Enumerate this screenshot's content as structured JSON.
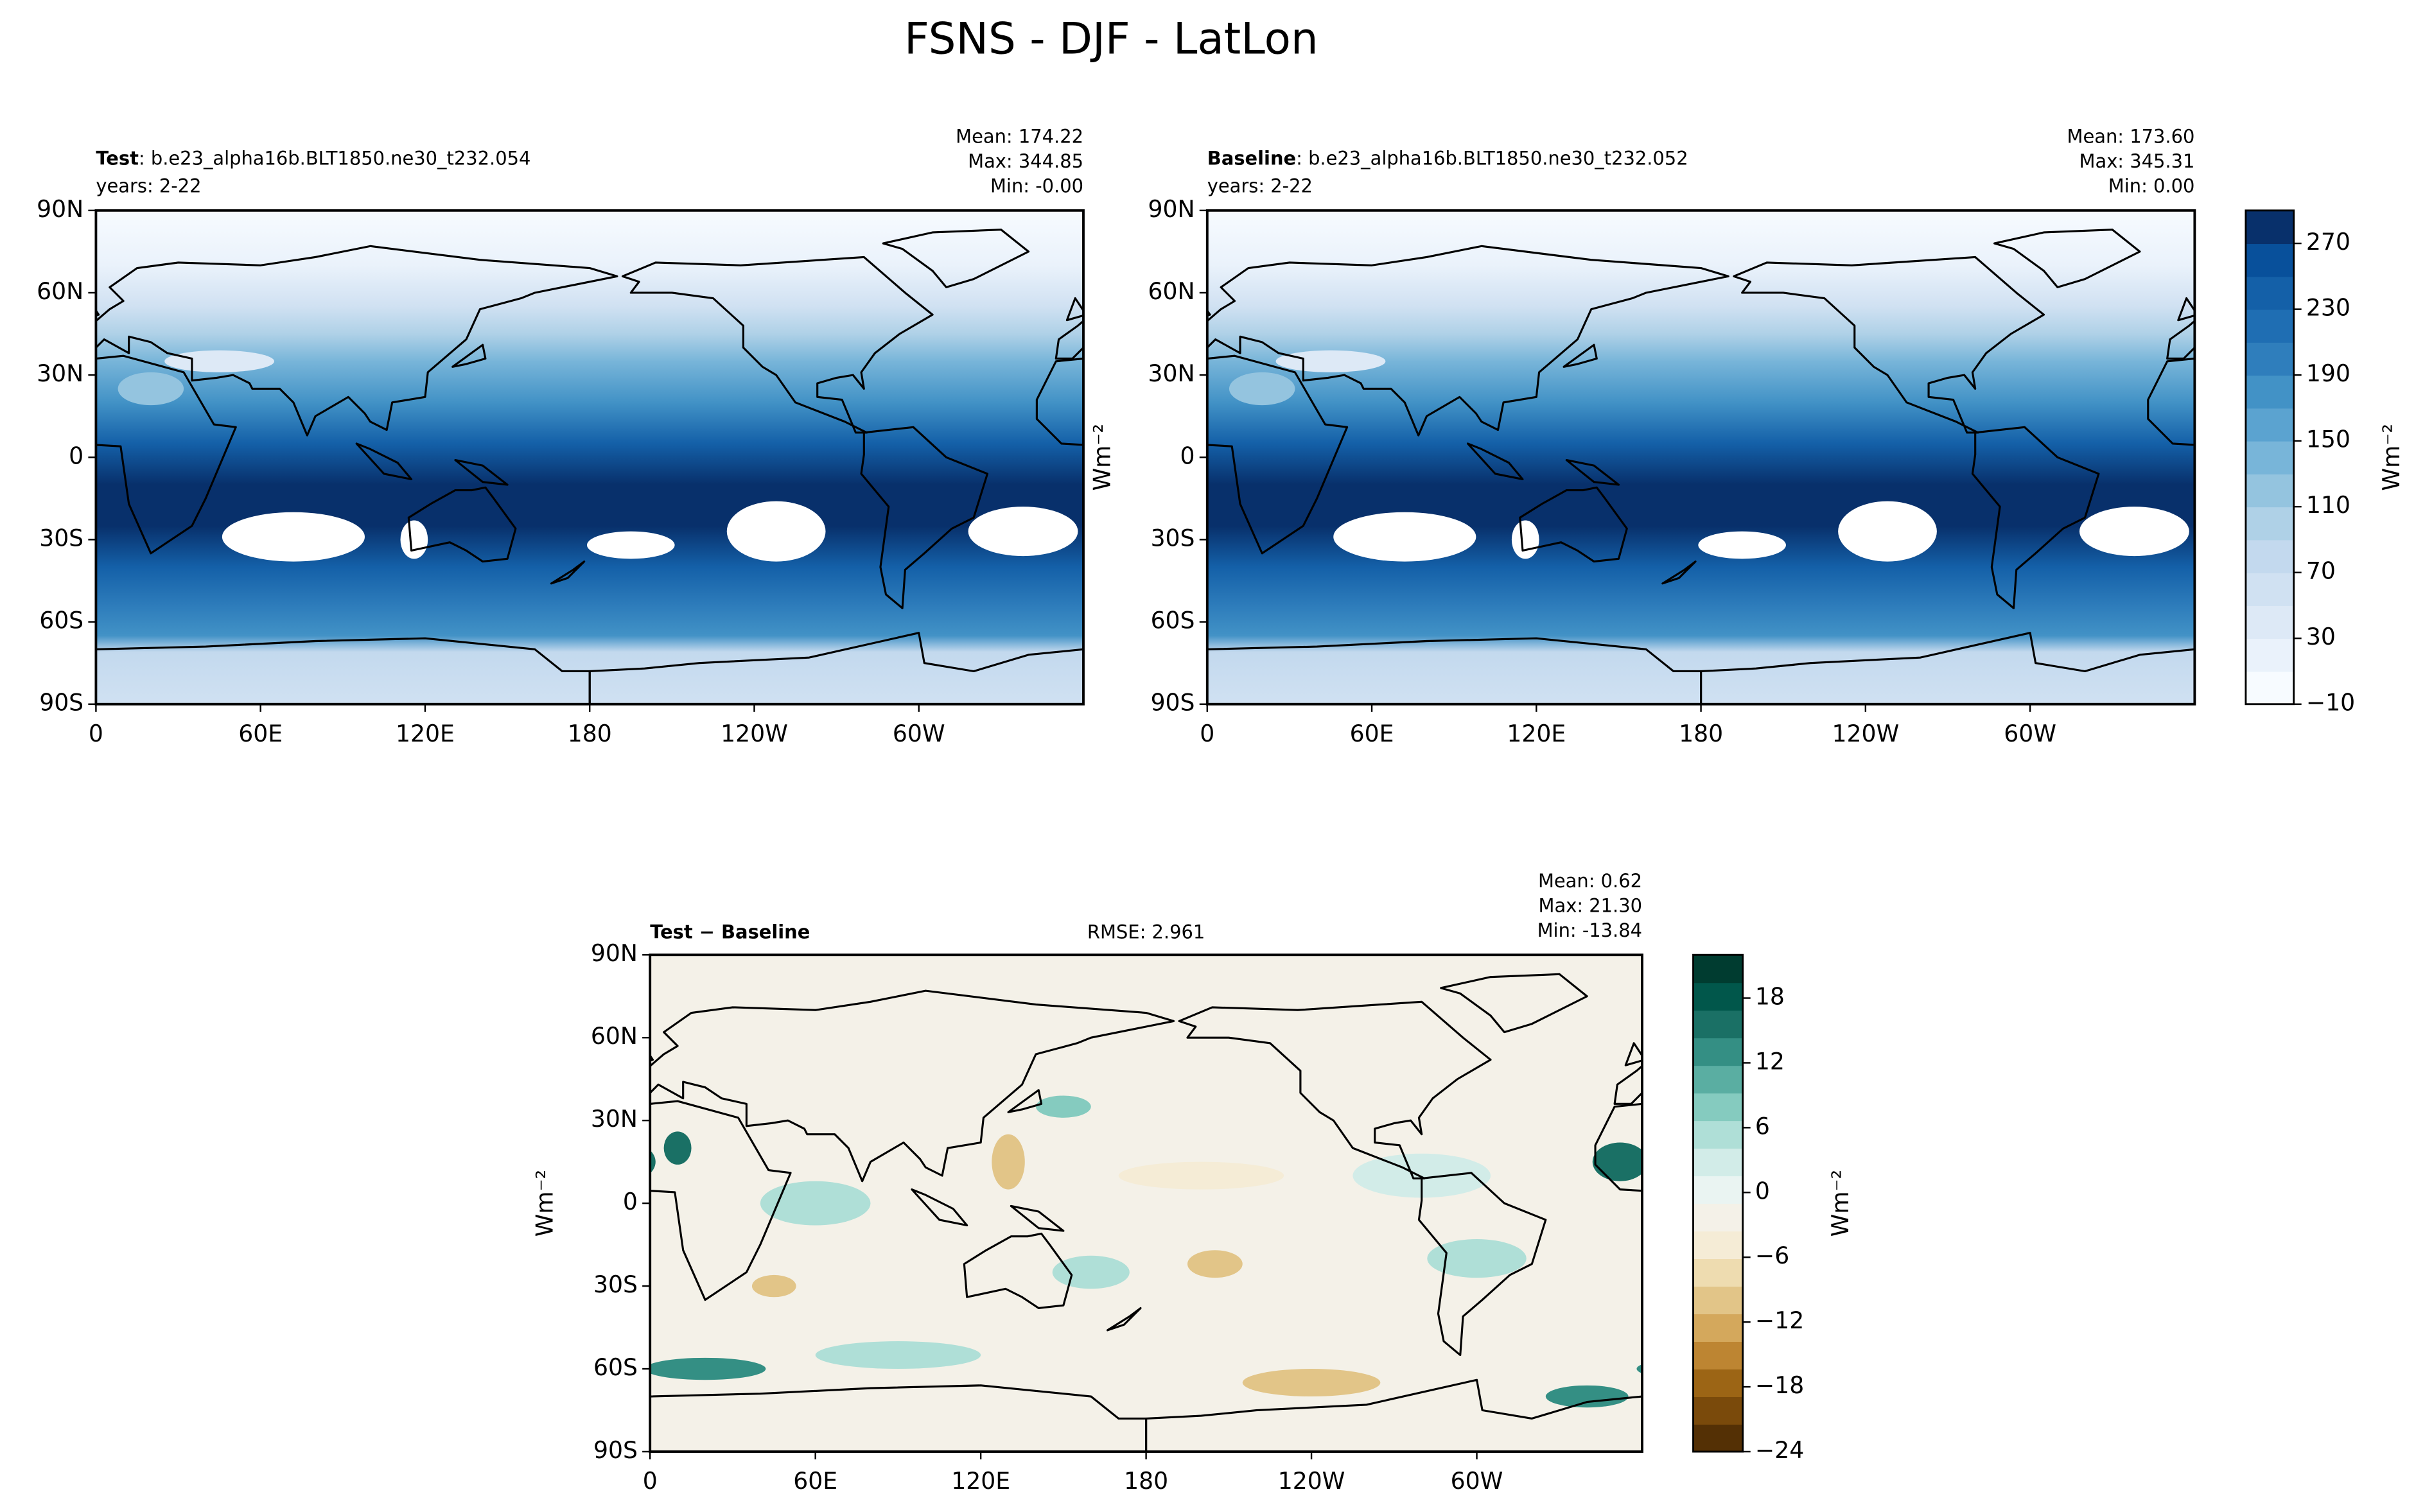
{
  "chart_data": [
    {
      "type": "contour-map",
      "title": "FSNS - DJF - LatLon",
      "case_label": "Test",
      "case_name": ": b.e23_alpha16b.BLT1850.ne30_t232.054",
      "years": "years: 2-22",
      "stats": [
        "Mean: 174.22",
        "Max: 344.85",
        "Min: -0.00"
      ],
      "xlim": [
        0,
        360
      ],
      "ylim": [
        -90,
        90
      ],
      "xticks": [
        0,
        {
          "value": 60,
          "label": "60E"
        },
        {
          "value": 120,
          "label": "120E"
        },
        180,
        {
          "value": 240,
          "label": "120W"
        },
        {
          "value": 300,
          "label": "60W"
        }
      ],
      "yticks": [
        {
          "value": 90,
          "label": "90N"
        },
        {
          "value": 60,
          "label": "60N"
        },
        {
          "value": 30,
          "label": "30N"
        },
        0,
        {
          "value": -30,
          "label": "30S"
        },
        {
          "value": -60,
          "label": "60S"
        },
        {
          "value": -90,
          "label": "90S"
        }
      ]
    },
    {
      "type": "contour-map",
      "case_label": "Baseline",
      "case_name": ": b.e23_alpha16b.BLT1850.ne30_t232.052",
      "years": "years: 2-22",
      "stats": [
        "Mean: 173.60",
        "Max: 345.31",
        "Min:  0.00"
      ],
      "ylabel": "Wm⁻²",
      "xlim": [
        0,
        360
      ],
      "ylim": [
        -90,
        90
      ],
      "xticks": [
        0,
        {
          "value": 60,
          "label": "60E"
        },
        {
          "value": 120,
          "label": "120E"
        },
        180,
        {
          "value": 240,
          "label": "120W"
        },
        {
          "value": 300,
          "label": "60W"
        }
      ],
      "yticks": [
        {
          "value": 90,
          "label": "90N"
        },
        {
          "value": 60,
          "label": "60N"
        },
        {
          "value": 30,
          "label": "30N"
        },
        0,
        {
          "value": -30,
          "label": "30S"
        },
        {
          "value": -60,
          "label": "60S"
        },
        {
          "value": -90,
          "label": "90S"
        }
      ],
      "colorbar": {
        "label": "Wm⁻²",
        "lim": [
          -10,
          290
        ],
        "ticks": [
          {
            "value": -10,
            "label": "−10"
          },
          30,
          70,
          110,
          150,
          190,
          230,
          270
        ],
        "colors": [
          "#f7fbff",
          "#eaf2fb",
          "#dde9f6",
          "#d0e1f2",
          "#c3d9ee",
          "#afd1e7",
          "#94c4df",
          "#78b5d9",
          "#5ba3d0",
          "#4292c6",
          "#2f7ebc",
          "#1f6eb3",
          "#1460a8",
          "#08509b",
          "#08306b"
        ]
      }
    },
    {
      "type": "contour-map",
      "case_label": "Test − Baseline",
      "rmse": "RMSE: 2.961",
      "stats": [
        "Mean:  0.62",
        "Max: 21.30",
        "Min: -13.84"
      ],
      "ylabel": "Wm⁻²",
      "xlim": [
        0,
        360
      ],
      "ylim": [
        -90,
        90
      ],
      "xticks": [
        0,
        {
          "value": 60,
          "label": "60E"
        },
        {
          "value": 120,
          "label": "120E"
        },
        180,
        {
          "value": 240,
          "label": "120W"
        },
        {
          "value": 300,
          "label": "60W"
        }
      ],
      "yticks": [
        {
          "value": 90,
          "label": "90N"
        },
        {
          "value": 60,
          "label": "60N"
        },
        {
          "value": 30,
          "label": "30N"
        },
        0,
        {
          "value": -30,
          "label": "30S"
        },
        {
          "value": -60,
          "label": "60S"
        },
        {
          "value": -90,
          "label": "90S"
        }
      ],
      "colorbar": {
        "label": "Wm⁻²",
        "lim": [
          -24,
          22
        ],
        "ticks": [
          {
            "value": -24,
            "label": "−24"
          },
          {
            "value": -18,
            "label": "−18"
          },
          {
            "value": -12,
            "label": "−12"
          },
          {
            "value": -6,
            "label": "−6"
          },
          0,
          6,
          12,
          18
        ],
        "colors": [
          "#543005",
          "#7a4a0b",
          "#9c6515",
          "#bd8532",
          "#d4a85c",
          "#e2c588",
          "#eedcb0",
          "#f5ecd6",
          "#f4f1e8",
          "#eaf4f2",
          "#d2ece8",
          "#afdfd7",
          "#85cbbf",
          "#5aaea2",
          "#348f84",
          "#1a7065",
          "#01574b",
          "#003c30"
        ]
      }
    }
  ]
}
